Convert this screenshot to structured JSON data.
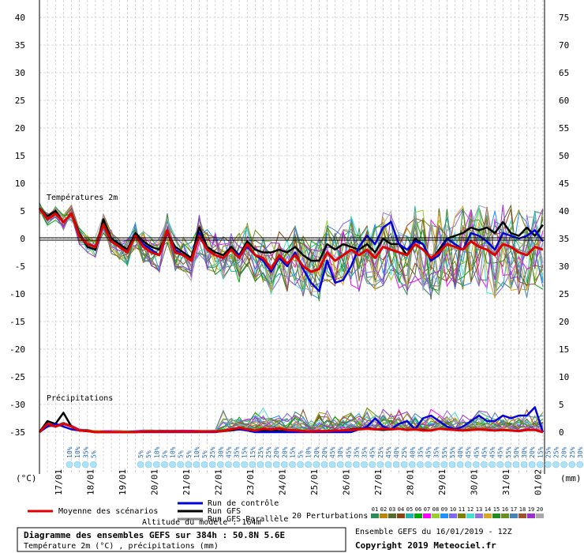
{
  "chart_data": {
    "type": "line",
    "title": "Diagramme des ensembles GEFS sur 384h : 50.8N 5.6E",
    "subtitle": "Température 2m (°C) , précipitations (mm)",
    "panels": {
      "temperature": "Températures 2m",
      "precipitation": "Précipitations"
    },
    "ylabel_left": "(°C)",
    "ylabel_right": "(mm)",
    "ylim_left": [
      -35,
      40
    ],
    "ylim_right": [
      0,
      75
    ],
    "yticks_left": [
      40,
      35,
      30,
      25,
      20,
      15,
      10,
      5,
      0,
      -5,
      -10,
      -15,
      -20,
      -25,
      -30,
      -35
    ],
    "yticks_right": [
      75,
      70,
      65,
      60,
      55,
      50,
      45,
      40,
      35,
      30,
      25,
      20,
      15,
      10,
      5,
      0
    ],
    "x_dates": [
      "17/01",
      "18/01",
      "19/01",
      "20/01",
      "21/01",
      "22/01",
      "23/01",
      "24/01",
      "25/01",
      "26/01",
      "27/01",
      "28/01",
      "29/01",
      "30/01",
      "31/01",
      "01/02"
    ],
    "x_step_hours": 6,
    "grid": true,
    "precip_probabilities": [
      "10%",
      "10%",
      "35%",
      "5%",
      "5%",
      "5%",
      "10%",
      "5%",
      "10%",
      "5%",
      "5%",
      "10%",
      "5%",
      "25%",
      "30%",
      "45%",
      "35%",
      "15%",
      "15%",
      "25%",
      "25%",
      "20%",
      "20%",
      "15%",
      "5%",
      "10%",
      "20%",
      "20%",
      "45%",
      "30%",
      "45%",
      "35%",
      "35%",
      "45%",
      "25%",
      "45%",
      "40%",
      "25%",
      "40%",
      "35%",
      "45%",
      "35%",
      "55%",
      "55%",
      "40%",
      "45%",
      "45%",
      "45%",
      "45%",
      "45%",
      "55%",
      "50%",
      "30%",
      "20%",
      "15%",
      "25%",
      "25%",
      "20%",
      "25%",
      "30%",
      "35%"
    ],
    "series": [
      {
        "name": "Moyenne des scénarios",
        "color": "#e00000",
        "temp": [
          5.5,
          3.5,
          4.5,
          3.0,
          4.5,
          0.5,
          -1.0,
          -1.5,
          2.5,
          -0.5,
          -1.5,
          -2.5,
          0.5,
          -1.5,
          -2.5,
          -3.0,
          1.5,
          -2.5,
          -3.0,
          -4.0,
          0.5,
          -2.0,
          -3.0,
          -3.5,
          -2.0,
          -3.5,
          -1.0,
          -3.0,
          -3.5,
          -5.5,
          -3.0,
          -4.5,
          -3.0,
          -5.0,
          -6.0,
          -5.5,
          -2.5,
          -4.0,
          -3.0,
          -2.0,
          -3.0,
          -2.0,
          -3.5,
          -1.5,
          -2.0,
          -2.5,
          -3.0,
          -1.0,
          -2.0,
          -3.5,
          -2.5,
          -1.0,
          -1.5,
          -2.0,
          -0.5,
          -1.5,
          -2.0,
          -3.0,
          -1.0,
          -1.5,
          -2.5,
          -3.0,
          -1.5,
          -2.0
        ],
        "precip": [
          0,
          1.5,
          1,
          1.5,
          1,
          0.3,
          0.2,
          0,
          0,
          0,
          0,
          0,
          0,
          0.1,
          0.1,
          0.1,
          0.1,
          0.1,
          0.1,
          0.1,
          0.1,
          0.1,
          0.1,
          0.2,
          0.5,
          0.8,
          0.5,
          0.3,
          0.6,
          0.5,
          0.7,
          0.4,
          0.3,
          0.2,
          0.1,
          0.2,
          0.2,
          0.3,
          0.3,
          0.4,
          0.5,
          0.6,
          0.5,
          0.6,
          0.5,
          0.6,
          0.4,
          0.5,
          0.3,
          0.3,
          0.6,
          0.5,
          0.4,
          0.3,
          0.4,
          0.5,
          0.4,
          0.3,
          0.4,
          0.3,
          0.2,
          0.4,
          0.4,
          0
        ]
      },
      {
        "name": "Run de contrôle",
        "color": "#0000dd",
        "temp": [
          5.5,
          3.5,
          4.5,
          3.0,
          4.5,
          0.5,
          -1.0,
          -1.5,
          2.5,
          -0.5,
          -1.5,
          -2.5,
          0.5,
          -1.0,
          -2.0,
          -3.0,
          1.0,
          -2.0,
          -3.0,
          -4.0,
          1.0,
          -2.0,
          -3.0,
          -3.5,
          -2.0,
          -3.0,
          -1.5,
          -3.0,
          -4.0,
          -6.0,
          -3.5,
          -5.0,
          -2.5,
          -5.5,
          -8.0,
          -9.5,
          -4.0,
          -8.0,
          -7.5,
          -5.0,
          -1.5,
          0.5,
          -1.0,
          2.0,
          3.0,
          -1.0,
          -2.0,
          -0.5,
          -1.0,
          -4.0,
          -3.0,
          0,
          -1.0,
          -2.0,
          1.0,
          0.5,
          -0.5,
          -2.0,
          1.0,
          0.5,
          0,
          0.5,
          1.5,
          -0.5
        ],
        "precip": [
          0,
          1,
          1.5,
          1,
          0.5,
          0.3,
          0.2,
          0,
          0,
          0,
          0,
          0,
          0,
          0,
          0,
          0,
          0,
          0,
          0,
          0,
          0,
          0,
          0,
          0.2,
          0.5,
          0.5,
          0.3,
          0,
          0,
          0,
          0,
          0,
          0,
          0,
          0,
          0,
          0,
          0,
          0,
          0,
          0.5,
          1,
          2.5,
          1,
          0.5,
          1.5,
          2,
          0.5,
          2.5,
          3,
          2,
          1,
          0.5,
          1,
          2,
          3,
          2,
          2,
          3,
          2.5,
          3,
          3,
          4.5,
          0
        ]
      },
      {
        "name": "Run GFS",
        "color": "#000000",
        "temp": [
          5.5,
          4.0,
          5.0,
          3.0,
          4.5,
          1.0,
          -1.5,
          -2.0,
          3.5,
          0,
          -1.0,
          -2.0,
          1.0,
          -0.5,
          -1.5,
          -2.0,
          1.0,
          -1.5,
          -2.5,
          -3.5,
          2.0,
          -1.5,
          -2.5,
          -3.0,
          -1.5,
          -3.0,
          -0.5,
          -2.0,
          -2.5,
          -2.5,
          -2.0,
          -2.5,
          -1.5,
          -3.0,
          -4.0,
          -4.0,
          -1.0,
          -2.0,
          -1.0,
          -1.5,
          -2.0,
          -1.0,
          -2.5,
          0,
          -1.0,
          -1.0,
          -3.0,
          0,
          -1.0,
          -4.0,
          -2.0,
          0,
          0.5,
          1.0,
          2.0,
          1.5,
          2.0,
          1.0,
          3.0,
          1.0,
          0.5,
          2.0,
          0.5,
          2.5
        ],
        "precip": [
          0,
          2,
          1.5,
          3.5,
          1,
          0.3,
          0.2,
          0,
          0,
          0,
          0,
          0,
          0,
          0.1,
          0.1,
          0.1,
          0.1,
          0.1,
          0.1,
          0.1,
          0.1,
          0.1,
          0.1,
          0.2,
          0.3,
          0.5,
          0.5,
          0.3,
          0.3,
          0.3,
          0.2,
          0.2,
          0.2,
          0.1,
          0.1,
          0.1,
          0.1,
          0.2,
          0.3,
          0.5,
          0.6,
          0.8,
          0.5,
          0.4,
          0.5,
          0.6,
          0.4,
          0.5,
          0.4,
          0.3,
          0.6,
          0.5,
          0.4,
          0.3,
          0.4,
          0.5,
          0.4,
          0.3,
          0.4,
          0.3,
          0.2,
          0.4,
          0.4,
          0
        ]
      },
      {
        "name": "Run GFS Parallèle",
        "color": "#888888",
        "temp": [
          5.0,
          3.5,
          4.0,
          3.0,
          4.0,
          0.5,
          -1.0,
          -1.5,
          2.5,
          -0.5,
          -1.5,
          -2.5,
          0.5,
          -1.0,
          -2.0,
          -3.0,
          1.5,
          -2.0,
          -3.0,
          -4.0,
          0.5,
          -2.0,
          -3.0,
          -3.5,
          -2.0,
          -3.5,
          -1.5,
          -3.0,
          -3.5,
          -5.0,
          -3.0,
          -4.5,
          -3.0,
          -5.0,
          -6.0,
          -5.0,
          -3.0,
          -4.0,
          -3.0,
          -2.5,
          -3.0,
          -2.0,
          -3.0,
          -1.5,
          -2.0,
          -2.5,
          -3.0,
          -1.0,
          -2.0,
          -3.0,
          -2.5,
          -1.0,
          -1.5,
          -2.0,
          -0.5,
          -1.5,
          -2.0,
          -2.5,
          -1.0,
          -1.5,
          -2.0,
          -2.5,
          -1.5,
          -2.0
        ],
        "precip": [
          0,
          1,
          1,
          1.5,
          1,
          0.3,
          0.2,
          0,
          0,
          0,
          0,
          0,
          0,
          0.1,
          0.1,
          0.1,
          0.1,
          0.1,
          0.1,
          0.1,
          0.1,
          0.1,
          0.1,
          0.2,
          0.4,
          0.6,
          0.4,
          0.3,
          0.4,
          0.4,
          0.5,
          0.3,
          0.2,
          0.2,
          0.1,
          0.2,
          0.2,
          0.3,
          0.3,
          0.4,
          0.5,
          0.6,
          0.5,
          0.6,
          0.5,
          0.6,
          0.4,
          0.5,
          0.3,
          0.3,
          0.6,
          0.5,
          0.4,
          0.3,
          0.4,
          0.5,
          0.4,
          0.3,
          0.4,
          0.3,
          0.2,
          0.4,
          0.4,
          0
        ]
      }
    ],
    "perturbations": {
      "label": "20 Perturbations",
      "ids": [
        "01",
        "02",
        "03",
        "04",
        "05",
        "06",
        "07",
        "08",
        "09",
        "10",
        "11",
        "12",
        "13",
        "14",
        "15",
        "16",
        "17",
        "18",
        "19",
        "20"
      ],
      "colors": [
        "#2e8b57",
        "#b8860b",
        "#556b2f",
        "#8b4513",
        "#20b2aa",
        "#00aa00",
        "#ff00ff",
        "#9acd32",
        "#1e90ff",
        "#7b68ee",
        "#808000",
        "#40e0d0",
        "#9370db",
        "#daa520",
        "#228b22",
        "#6b8e23",
        "#4682b4",
        "#a0522d",
        "#9932cc",
        "#a9a9a9"
      ]
    },
    "legend": {
      "mean": "Moyenne des scénarios",
      "control": "Run de contrôle",
      "gfs": "Run GFS",
      "parallel": "Run GFS Parallèle",
      "altitude": "Altitude du modèle : 164m"
    }
  },
  "footer": {
    "title": "Diagramme des ensembles GEFS sur 384h : 50.8N 5.6E",
    "subtitle": "Température 2m (°C) , précipitations (mm)",
    "run": "Ensemble GEFS du 16/01/2019 - 12Z",
    "copyright": "Copyright 2019 Meteociel.fr"
  }
}
